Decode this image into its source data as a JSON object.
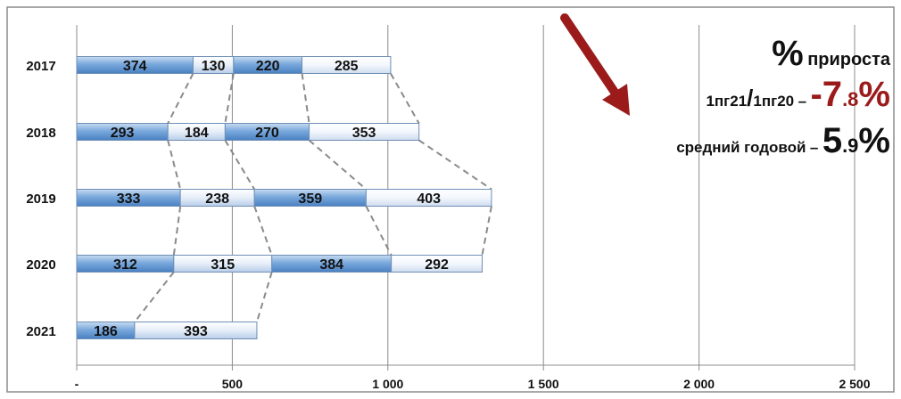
{
  "chart_data": {
    "type": "bar",
    "orientation": "horizontal",
    "stacked": true,
    "categories": [
      "2017",
      "2018",
      "2019",
      "2020",
      "2021"
    ],
    "series": [
      {
        "values": [
          374,
          293,
          333,
          312,
          186
        ]
      },
      {
        "values": [
          130,
          184,
          238,
          315,
          393
        ]
      },
      {
        "values": [
          220,
          270,
          359,
          384,
          null
        ]
      },
      {
        "values": [
          285,
          353,
          403,
          292,
          null
        ]
      }
    ],
    "xlim": [
      0,
      2500
    ],
    "xticks": [
      0,
      500,
      1000,
      1500,
      2000,
      2500
    ],
    "xtick_labels": [
      "-",
      "500",
      "1 000",
      "1 500",
      "2 000",
      "2 500"
    ],
    "grid": true,
    "series_colors": [
      "#5f95d2",
      "#d6e5f5",
      "#5f95d2",
      "#eef4fb"
    ]
  },
  "annotation": {
    "line1_symbol": "%",
    "line1_text": "прироста",
    "line2_label": "1пг21/1пг20",
    "line2_slash": "/",
    "line2_label_a": "1пг21",
    "line2_label_b": "1пг20",
    "line2_dash": "–",
    "line2_value_int": "-7",
    "line2_value_dec": ".8",
    "line2_value_pct": "%",
    "line3_label": "средний годовой",
    "line3_dash": "–",
    "line3_value_int": "5",
    "line3_value_dec": ".9",
    "line3_value_pct": "%",
    "arrow_icon": "down-right-arrow-icon",
    "arrow_color": "#9b1b1b"
  }
}
